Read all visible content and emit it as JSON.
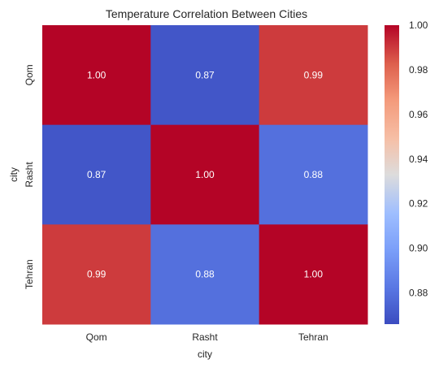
{
  "chart_data": {
    "type": "heatmap",
    "title": "Temperature Correlation Between Cities",
    "xlabel": "city",
    "ylabel": "city",
    "x_categories": [
      "Qom",
      "Rasht",
      "Tehran"
    ],
    "y_categories": [
      "Qom",
      "Rasht",
      "Tehran"
    ],
    "values": [
      [
        1.0,
        0.87,
        0.99
      ],
      [
        0.87,
        1.0,
        0.88
      ],
      [
        0.99,
        0.88,
        1.0
      ]
    ],
    "value_format": "0.00",
    "colormap": "coolwarm",
    "colorbar": {
      "range": [
        0.866,
        1.0
      ],
      "ticks": [
        0.88,
        0.9,
        0.92,
        0.94,
        0.96,
        0.98,
        1.0
      ],
      "tick_labels": [
        "0.88",
        "0.90",
        "0.92",
        "0.94",
        "0.96",
        "0.98",
        "1.00"
      ]
    },
    "annotation_color": "#ffffff"
  }
}
